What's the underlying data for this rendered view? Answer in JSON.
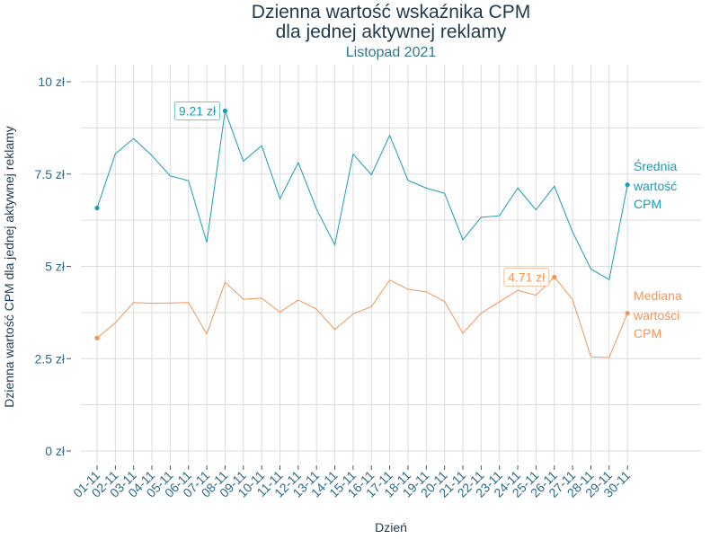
{
  "chart_data": {
    "type": "line",
    "title_line1": "Dzienna wartość wskaźnika CPM",
    "title_line2": "dla jednej aktywnej reklamy",
    "subtitle": "Listopad 2021",
    "xlabel": "Dzień",
    "ylabel": "Dzienna wartość CPM dla jednej aktywnej reklamy",
    "ylim": [
      -0.3,
      10.3
    ],
    "yticks": [
      0,
      2.5,
      5,
      7.5,
      10
    ],
    "ytick_labels": [
      "0 zł",
      "2.5 zł",
      "5 zł",
      "7.5 zł",
      "10 zł"
    ],
    "categories": [
      "01-11",
      "02-11",
      "03-11",
      "04-11",
      "05-11",
      "06-11",
      "07-11",
      "08-11",
      "09-11",
      "10-11",
      "11-11",
      "12-11",
      "13-11",
      "14-11",
      "15-11",
      "16-11",
      "17-11",
      "18-11",
      "19-11",
      "20-11",
      "21-11",
      "22-11",
      "23-11",
      "24-11",
      "25-11",
      "26-11",
      "27-11",
      "28-11",
      "29-11",
      "30-11"
    ],
    "grid": true,
    "series": [
      {
        "name_lines": [
          "Średnia",
          "wartość",
          "CPM"
        ],
        "color": "#1a9bb5",
        "values": [
          6.58,
          8.05,
          8.46,
          8.0,
          7.45,
          7.32,
          5.65,
          9.21,
          7.85,
          8.27,
          6.83,
          7.81,
          6.55,
          5.58,
          8.04,
          7.48,
          8.55,
          7.33,
          7.12,
          6.98,
          5.72,
          6.33,
          6.37,
          7.12,
          6.53,
          7.17,
          5.93,
          4.93,
          4.64,
          7.21
        ],
        "annotation": {
          "index": 7,
          "text": "9.21 zł"
        }
      },
      {
        "name_lines": [
          "Mediana",
          "wartości",
          "CPM"
        ],
        "color": "#f0965a",
        "values": [
          3.06,
          3.47,
          4.02,
          4.0,
          4.01,
          4.02,
          3.17,
          4.57,
          4.11,
          4.14,
          3.76,
          4.09,
          3.84,
          3.29,
          3.71,
          3.91,
          4.63,
          4.38,
          4.31,
          4.05,
          3.19,
          3.73,
          4.04,
          4.35,
          4.22,
          4.71,
          4.1,
          2.55,
          2.53,
          3.73
        ],
        "annotation": {
          "index": 25,
          "text": "4.71 zł"
        }
      }
    ]
  }
}
